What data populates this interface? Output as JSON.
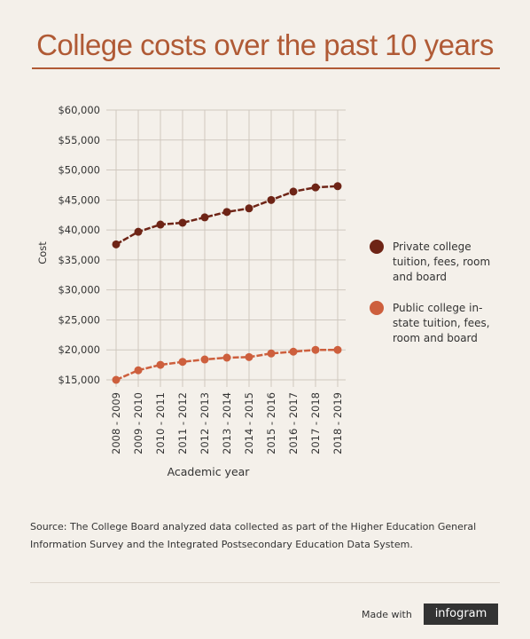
{
  "chart_data": {
    "type": "line",
    "title": "College costs  over the past 10 years",
    "y_label": "Cost",
    "x_label": "Academic year",
    "categories": [
      "2008 - 2009",
      "2009 - 2010",
      "2010 - 2011",
      "2011 - 2012",
      "2012 - 2013",
      "2013 - 2014",
      "2014 - 2015",
      "2015 - 2016",
      "2016 - 2017",
      "2017 - 2018",
      "2018 - 2019"
    ],
    "series": [
      {
        "name": "Private college tuition, fees, room and board",
        "color": "#6e2416",
        "values": [
          37600,
          39700,
          40900,
          41200,
          42100,
          43000,
          43600,
          45000,
          46400,
          47100,
          47300
        ]
      },
      {
        "name": "Public college in-state tuition, fees, room and board",
        "color": "#cd5f3d",
        "values": [
          15000,
          16600,
          17500,
          18000,
          18400,
          18700,
          18800,
          19400,
          19700,
          20000,
          20000
        ]
      }
    ],
    "ylim": [
      15000,
      60000
    ],
    "yticks": [
      {
        "value": 15000,
        "label": "$15,000"
      },
      {
        "value": 20000,
        "label": "$20,000"
      },
      {
        "value": 25000,
        "label": "$25,000"
      },
      {
        "value": 30000,
        "label": "$30,000"
      },
      {
        "value": 35000,
        "label": "$35,000"
      },
      {
        "value": 40000,
        "label": "$40,000"
      },
      {
        "value": 45000,
        "label": "$45,000"
      },
      {
        "value": 50000,
        "label": "$50,000"
      },
      {
        "value": 55000,
        "label": "$55,000"
      },
      {
        "value": 60000,
        "label": "$60,000"
      }
    ],
    "grid": true,
    "legend": "right"
  },
  "source": "Source: The College Board analyzed data collected as part of the Higher Education General Information Survey and the Integrated Postsecondary Education Data System.",
  "footer": {
    "made_with": "Made with",
    "brand": "infogram"
  }
}
